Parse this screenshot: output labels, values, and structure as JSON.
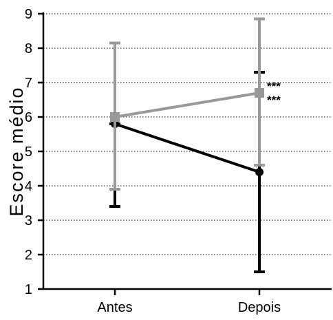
{
  "chart_data": {
    "type": "line",
    "categories": [
      "Antes",
      "Depois"
    ],
    "ylabel": "Escore médio",
    "xlabel": "",
    "ylim": [
      1,
      9
    ],
    "yticks": [
      1,
      2,
      3,
      4,
      5,
      6,
      7,
      8,
      9
    ],
    "grid": "horizontal dotted",
    "series": [
      {
        "color": "#000000",
        "marker": "circle",
        "values": [
          5.8,
          4.4
        ],
        "error_low": [
          3.4,
          1.5
        ],
        "error_high": [
          5.8,
          7.3
        ],
        "annotation": "***"
      },
      {
        "color": "#999999",
        "marker": "square",
        "values": [
          6.0,
          6.7
        ],
        "error_low": [
          3.9,
          4.6
        ],
        "error_high": [
          8.15,
          8.85
        ],
        "annotation": "***"
      }
    ]
  }
}
